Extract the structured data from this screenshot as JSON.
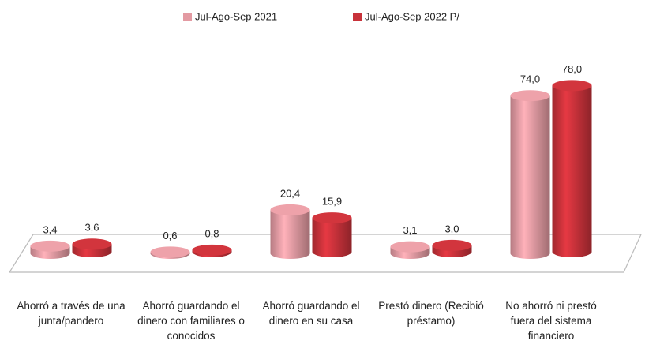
{
  "chart_data": {
    "type": "bar",
    "categories": [
      "Ahorró a través de una junta/pandero",
      "Ahorró guardando el dinero con familiares o conocidos",
      "Ahorró guardando el dinero en su casa",
      "Prestó dinero (Recibió préstamo)",
      "No ahorró ni prestó fuera del sistema financiero"
    ],
    "series": [
      {
        "name": "Jul-Ago-Sep 2021",
        "color": "#e39aa2",
        "values": [
          3.4,
          0.6,
          20.4,
          3.1,
          74.0
        ],
        "value_labels": [
          "3,4",
          "0,6",
          "20,4",
          "3,1",
          "74,0"
        ]
      },
      {
        "name": "Jul-Ago-Sep 2022 P/",
        "color": "#c8323a",
        "values": [
          3.6,
          0.8,
          15.9,
          3.0,
          78.0
        ],
        "value_labels": [
          "3,6",
          "0,8",
          "15,9",
          "3,0",
          "78,0"
        ]
      }
    ],
    "legend": "top"
  }
}
